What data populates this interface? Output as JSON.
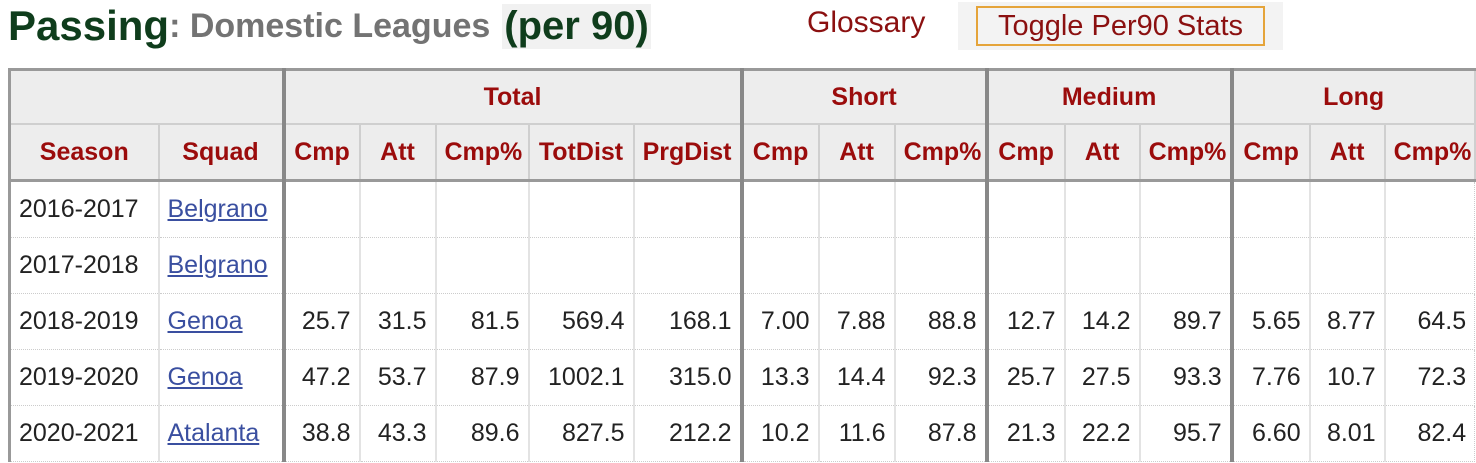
{
  "title": {
    "main": "Passing",
    "sub": ": Domestic Leagues",
    "per90": "(per 90)"
  },
  "links": {
    "glossary": "Glossary",
    "toggle": "Toggle Per90 Stats"
  },
  "table": {
    "row_headers": [
      "Season",
      "Squad"
    ],
    "groups": [
      {
        "label": "Total",
        "columns": [
          "Cmp",
          "Att",
          "Cmp%",
          "TotDist",
          "PrgDist"
        ]
      },
      {
        "label": "Short",
        "columns": [
          "Cmp",
          "Att",
          "Cmp%"
        ]
      },
      {
        "label": "Medium",
        "columns": [
          "Cmp",
          "Att",
          "Cmp%"
        ]
      },
      {
        "label": "Long",
        "columns": [
          "Cmp",
          "Att",
          "Cmp%"
        ]
      }
    ],
    "rows": [
      {
        "season": "2016-2017",
        "squad": "Belgrano",
        "stats": []
      },
      {
        "season": "2017-2018",
        "squad": "Belgrano",
        "stats": []
      },
      {
        "season": "2018-2019",
        "squad": "Genoa",
        "stats": [
          "25.7",
          "31.5",
          "81.5",
          "569.4",
          "168.1",
          "7.00",
          "7.88",
          "88.8",
          "12.7",
          "14.2",
          "89.7",
          "5.65",
          "8.77",
          "64.5"
        ]
      },
      {
        "season": "2019-2020",
        "squad": "Genoa",
        "stats": [
          "47.2",
          "53.7",
          "87.9",
          "1002.1",
          "315.0",
          "13.3",
          "14.4",
          "92.3",
          "25.7",
          "27.5",
          "93.3",
          "7.76",
          "10.7",
          "72.3"
        ]
      },
      {
        "season": "2020-2021",
        "squad": "Atalanta",
        "stats": [
          "38.8",
          "43.3",
          "89.6",
          "827.5",
          "212.2",
          "10.2",
          "11.6",
          "87.8",
          "21.3",
          "22.2",
          "95.7",
          "6.60",
          "8.01",
          "82.4"
        ]
      }
    ]
  }
}
